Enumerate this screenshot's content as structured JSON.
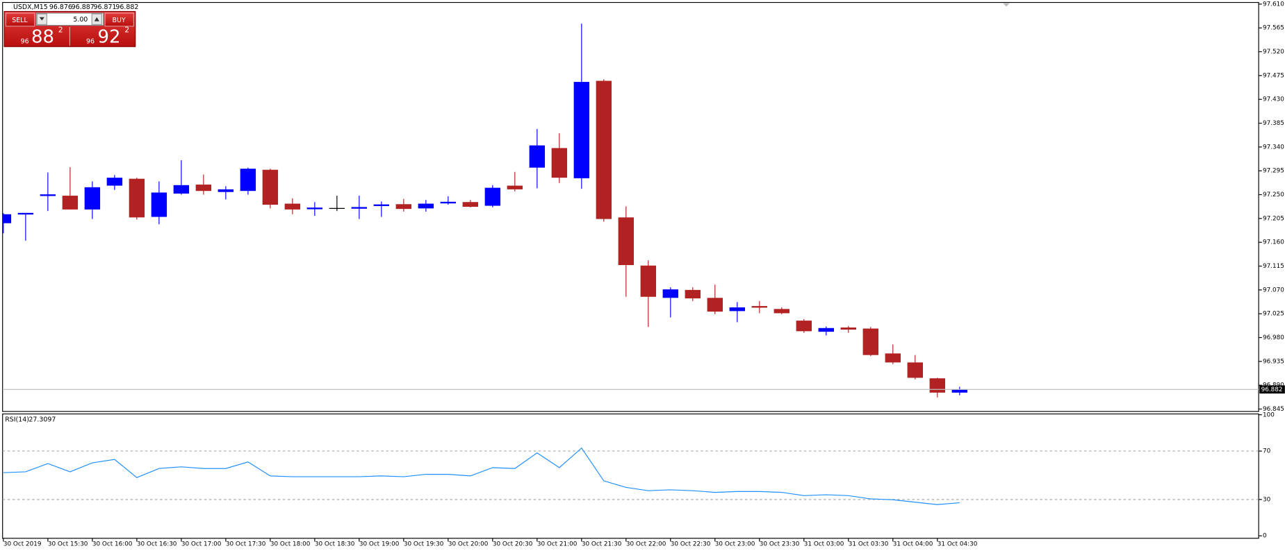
{
  "chart_data": [
    {
      "type": "candlestick",
      "title": "USDX,M15",
      "categories": [
        "30 Oct 2019",
        null,
        "30 Oct 15:30",
        null,
        "30 Oct 16:00",
        null,
        "30 Oct 16:30",
        null,
        "30 Oct 17:00",
        null,
        "30 Oct 17:30",
        null,
        "30 Oct 18:00",
        null,
        "30 Oct 18:30",
        null,
        "30 Oct 19:00",
        null,
        "30 Oct 19:30",
        null,
        "30 Oct 20:00",
        null,
        "30 Oct 20:30",
        null,
        "30 Oct 21:00",
        null,
        "30 Oct 21:30",
        null,
        "30 Oct 22:00",
        null,
        "30 Oct 22:30",
        null,
        "30 Oct 23:00",
        null,
        "30 Oct 23:30",
        null,
        "31 Oct 03:00",
        null,
        "31 Oct 03:30",
        null,
        "31 Oct 04:00",
        null,
        "31 Oct 04:30",
        null
      ],
      "open": [
        97.196,
        97.212,
        97.246,
        97.248,
        97.222,
        97.267,
        97.28,
        97.208,
        97.252,
        97.269,
        97.255,
        97.257,
        97.297,
        97.233,
        97.221,
        97.224,
        97.222,
        97.227,
        97.232,
        97.224,
        97.232,
        97.236,
        97.229,
        97.267,
        97.301,
        97.338,
        97.281,
        97.465,
        97.207,
        97.116,
        97.055,
        97.07,
        97.055,
        97.03,
        97.038,
        97.034,
        97.012,
        96.991,
        96.999,
        96.997,
        96.95,
        96.933,
        96.903,
        96.876
      ],
      "high": [
        97.215,
        97.215,
        97.292,
        97.302,
        97.275,
        97.287,
        97.282,
        97.275,
        97.315,
        97.288,
        97.266,
        97.301,
        97.299,
        97.243,
        97.236,
        97.248,
        97.248,
        97.237,
        97.242,
        97.24,
        97.247,
        97.24,
        97.268,
        97.293,
        97.374,
        97.366,
        97.573,
        97.468,
        97.228,
        97.126,
        97.075,
        97.075,
        97.08,
        97.047,
        97.049,
        97.037,
        97.015,
        97.001,
        97.002,
        97.0,
        96.967,
        96.947,
        96.904,
        96.887
      ],
      "low": [
        97.177,
        97.163,
        97.219,
        97.222,
        97.204,
        97.259,
        97.203,
        97.194,
        97.25,
        97.25,
        97.241,
        97.25,
        97.224,
        97.213,
        97.21,
        97.219,
        97.204,
        97.208,
        97.218,
        97.218,
        97.231,
        97.226,
        97.226,
        97.256,
        97.262,
        97.272,
        97.261,
        97.199,
        97.057,
        97.0,
        97.018,
        97.049,
        97.024,
        97.009,
        97.026,
        97.024,
        96.989,
        96.984,
        96.989,
        96.945,
        96.93,
        96.901,
        96.867,
        96.871
      ],
      "close": [
        97.213,
        97.214,
        97.249,
        97.222,
        97.264,
        97.282,
        97.207,
        97.254,
        97.268,
        97.257,
        97.26,
        97.299,
        97.231,
        97.222,
        97.224,
        97.224,
        97.225,
        97.23,
        97.223,
        97.233,
        97.235,
        97.227,
        97.263,
        97.26,
        97.343,
        97.282,
        97.463,
        97.204,
        97.117,
        97.057,
        97.071,
        97.054,
        97.029,
        97.037,
        97.035,
        97.026,
        96.992,
        96.998,
        96.995,
        96.947,
        96.933,
        96.904,
        96.876,
        96.882
      ],
      "up_color": "#0000ff",
      "down_color": "#b22222",
      "doji_color": "#000000",
      "ylim": [
        96.845,
        97.61
      ],
      "yticks": [
        96.845,
        {
          "value": 96.89,
          "label": "96.890"
        },
        96.935,
        {
          "value": 96.98,
          "label": "96.980"
        },
        97.025,
        {
          "value": 97.07,
          "label": "97.070"
        },
        97.115,
        {
          "value": 97.16,
          "label": "97.160"
        },
        97.205,
        {
          "value": 97.25,
          "label": "97.250"
        },
        97.295,
        {
          "value": 97.34,
          "label": "97.340"
        },
        97.385,
        {
          "value": 97.43,
          "label": "97.430"
        },
        97.475,
        {
          "value": 97.52,
          "label": "97.520"
        },
        97.565,
        {
          "value": 97.61,
          "label": "97.610"
        }
      ]
    },
    {
      "type": "line",
      "title": "RSI(14)",
      "color": "#1e90ff",
      "values": [
        52.2,
        52.9,
        59.7,
        52.9,
        60.3,
        63.1,
        48.1,
        55.6,
        57.0,
        55.6,
        55.6,
        61.0,
        49.5,
        48.8,
        48.8,
        48.8,
        48.8,
        49.5,
        48.8,
        50.8,
        50.8,
        49.5,
        56.3,
        55.6,
        68.5,
        56.3,
        72.5,
        45.4,
        40.0,
        37.3,
        38.0,
        37.3,
        35.9,
        36.6,
        36.6,
        35.9,
        33.2,
        33.9,
        33.2,
        30.5,
        29.8,
        27.8,
        25.8,
        27.3097
      ],
      "ylim": [
        0,
        100
      ],
      "yticks": [
        0,
        30,
        70,
        100
      ]
    }
  ],
  "trade_panel": {
    "sell": "SELL",
    "buy": "BUY",
    "lots": "5.00",
    "bid": {
      "big": "96",
      "mid": "88",
      "small": "2"
    },
    "ask": {
      "big": "96",
      "mid": "92",
      "small": "2"
    }
  }
}
